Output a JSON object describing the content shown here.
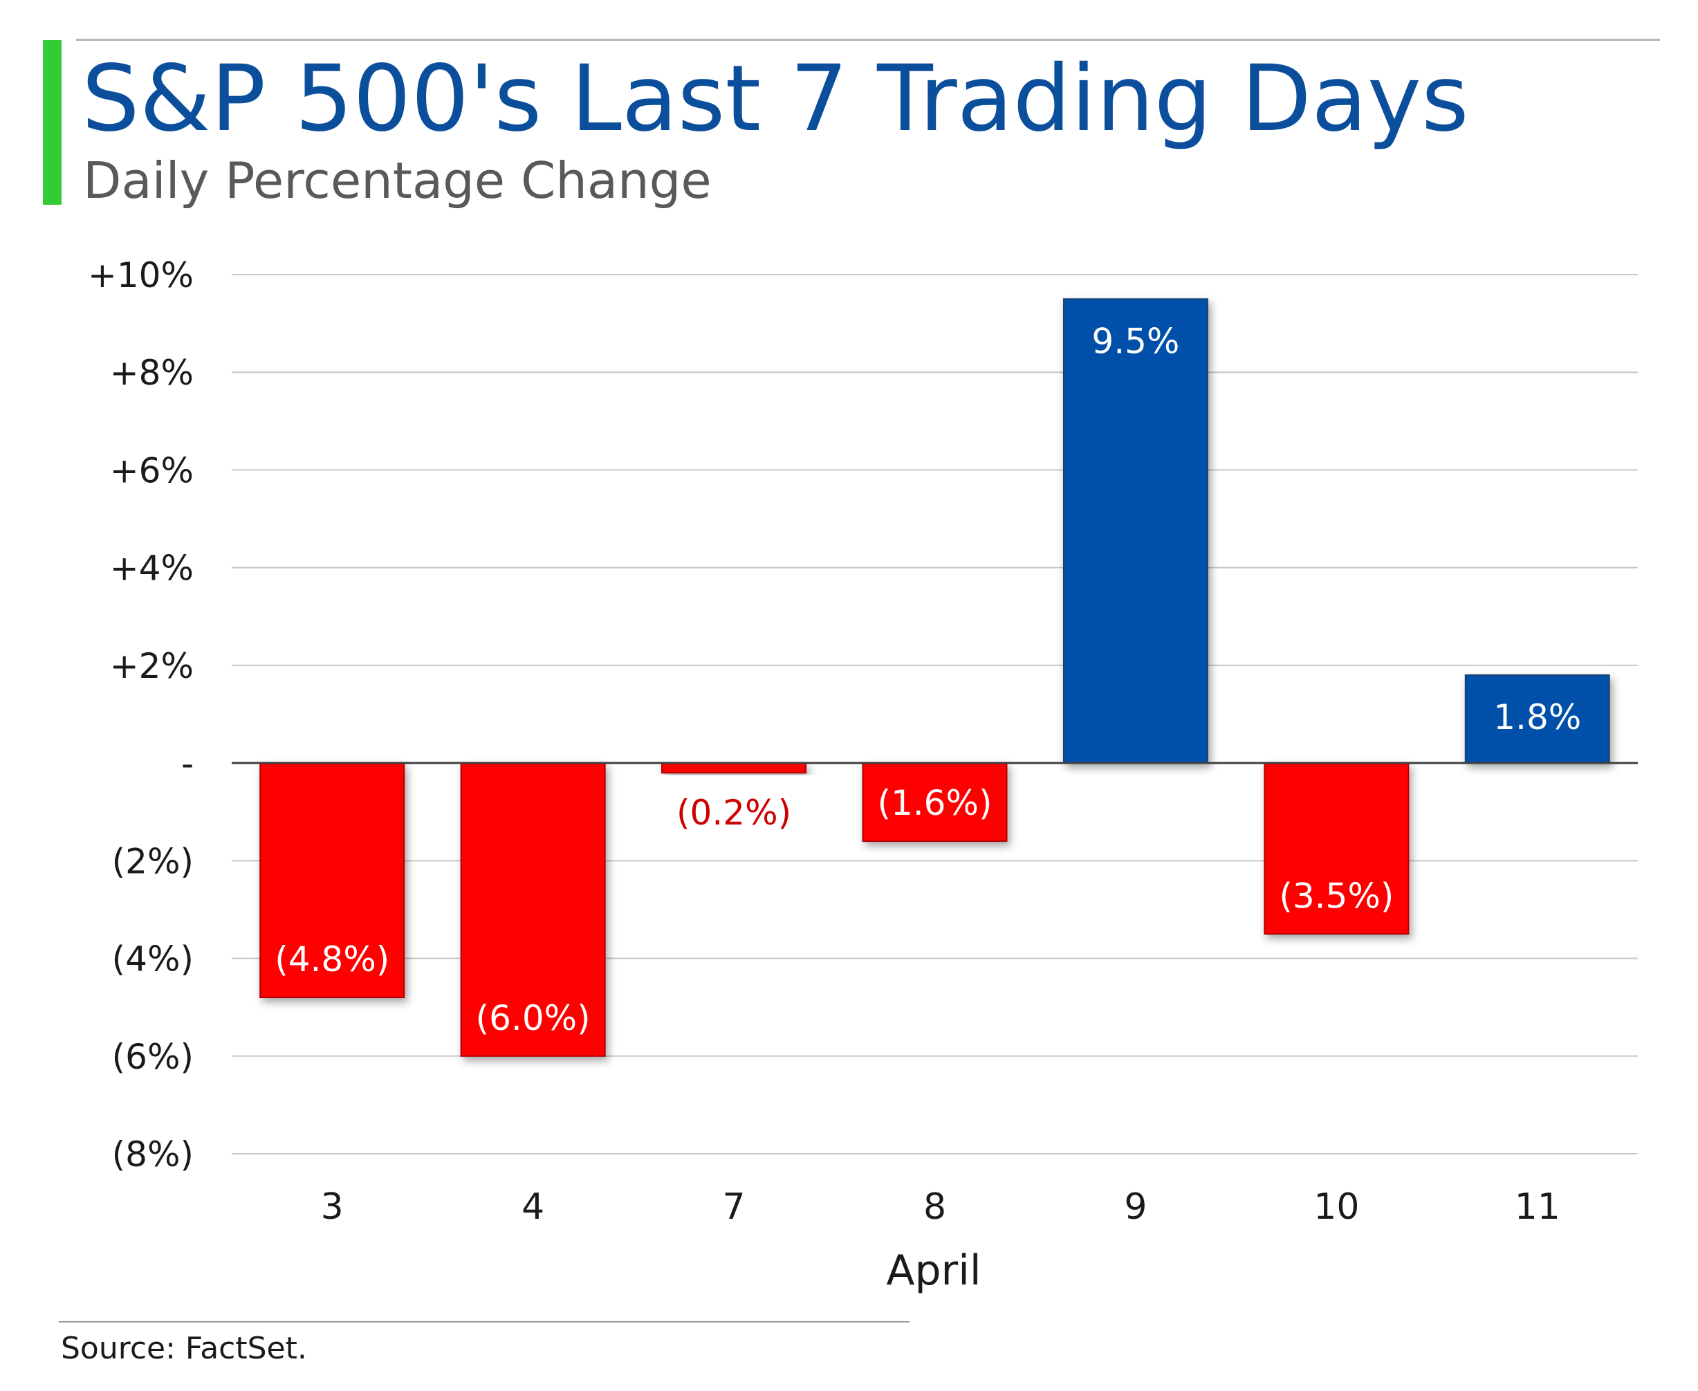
{
  "colors": {
    "accent": "#33cc33",
    "title": "#0b4f9c",
    "positive": "#0050a8",
    "negative": "#ff0000",
    "negative_label_outside": "#cc0000",
    "grid": "#c8c8c8",
    "zero_line": "#404040"
  },
  "header": {
    "title": "S&P 500's Last 7 Trading Days",
    "subtitle": "Daily Percentage Change"
  },
  "footer": {
    "source": "Source: FactSet."
  },
  "chart_data": {
    "type": "bar",
    "title": "S&P 500's Last 7 Trading Days",
    "subtitle": "Daily Percentage Change",
    "xlabel": "April",
    "ylabel": "",
    "categories": [
      "3",
      "4",
      "7",
      "8",
      "9",
      "10",
      "11"
    ],
    "values": [
      -4.8,
      -6.0,
      -0.2,
      -1.6,
      9.5,
      -3.5,
      1.8
    ],
    "data_labels": [
      "(4.8%)",
      "(6.0%)",
      "(0.2%)",
      "(1.6%)",
      "9.5%",
      "(3.5%)",
      "1.8%"
    ],
    "ylim": [
      -8,
      10
    ],
    "yticks": [
      10,
      8,
      6,
      4,
      2,
      0,
      -2,
      -4,
      -6,
      -8
    ],
    "ytick_labels": [
      "+10%",
      "+8%",
      "+6%",
      "+4%",
      "+2%",
      "-",
      "(2%)",
      "(4%)",
      "(6%)",
      "(8%)"
    ],
    "grid": true,
    "legend": "none"
  }
}
